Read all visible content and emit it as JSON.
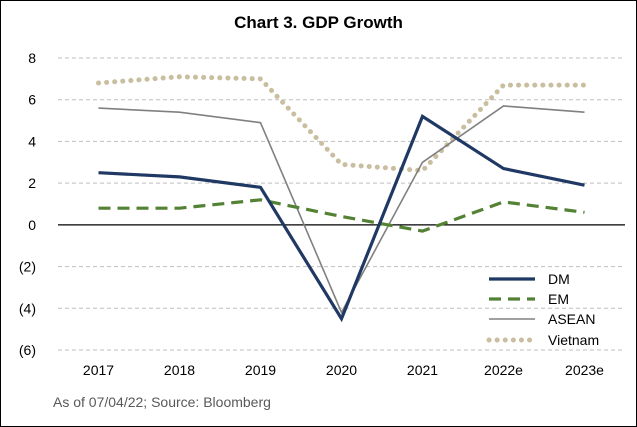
{
  "chart_data": {
    "type": "line",
    "title": "Chart 3. GDP Growth",
    "categories": [
      "2017",
      "2018",
      "2019",
      "2020",
      "2021",
      "2022e",
      "2023e"
    ],
    "ylim": [
      -6,
      8
    ],
    "yticks": [
      8,
      6,
      4,
      2,
      0,
      -2,
      -4,
      -6
    ],
    "ytick_labels": [
      "8",
      "6",
      "4",
      "2",
      "0",
      "(2)",
      "(4)",
      "(6)"
    ],
    "grid": "horizontal dashed",
    "legend_position": "bottom-right",
    "series": [
      {
        "name": "DM",
        "values": [
          2.5,
          2.3,
          1.8,
          -4.5,
          5.2,
          2.7,
          1.9
        ],
        "color": "#1f3864",
        "style": "solid-thick"
      },
      {
        "name": "EM",
        "values": [
          0.8,
          0.8,
          1.2,
          0.4,
          -0.3,
          1.1,
          0.6
        ],
        "color": "#548235",
        "style": "dashed"
      },
      {
        "name": "ASEAN",
        "values": [
          5.6,
          5.4,
          4.9,
          -4.2,
          3.0,
          5.7,
          5.4
        ],
        "color": "#808080",
        "style": "solid-thin"
      },
      {
        "name": "Vietnam",
        "values": [
          6.8,
          7.1,
          7.0,
          2.9,
          2.6,
          6.7,
          6.7
        ],
        "color": "#c9bfa0",
        "style": "dotted"
      }
    ]
  },
  "footer": "As of 07/04/22; Source: Bloomberg"
}
